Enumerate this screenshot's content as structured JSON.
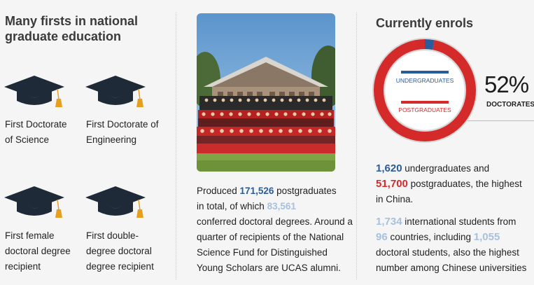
{
  "firsts": {
    "title_line1": "Many firsts in national",
    "title_line2": "graduate education",
    "items": [
      {
        "line1": "First Doctorate",
        "line2": "of Science",
        "icon": "graduation-cap-icon"
      },
      {
        "line1": "First Doctorate of",
        "line2": "Engineering",
        "icon": "graduation-cap-icon"
      },
      {
        "line1": "First female",
        "line2": "doctoral degree",
        "line3": "recipient",
        "icon": "graduation-cap-icon"
      },
      {
        "line1": "First double-",
        "line2": "degree doctoral",
        "line3": "degree recipient",
        "icon": "graduation-cap-icon"
      }
    ],
    "cap_color": "#1e2a38",
    "tassel_color": "#e6a020"
  },
  "produced": {
    "l1_pre": "Produced ",
    "l1_num": "171,526",
    "l1_post": " postgraduates",
    "l2_pre": "in total, of which ",
    "l2_num": "83,561",
    "l3": "conferred doctoral degrees. Around a",
    "l4": "quarter of recipients of the National",
    "l5": "Science Fund for Distinguished",
    "l6": "Young Scholars are UCAS alumni."
  },
  "enrols": {
    "title": "Currently enrols",
    "undergrad_label": "UNDERGRADUATES",
    "postgrad_label": "POSTGRADUATES",
    "percent": "52%",
    "percent_label": "DOCTORATES",
    "postgrad_share": 0.97,
    "undergrad_share": 0.03,
    "colors": {
      "postgrad": "#d42a2a",
      "undergrad": "#2a5b9a"
    },
    "s1_l1_num": "1,620",
    "s1_l1_post": " undergraduates and",
    "s1_l2_num": "51,700",
    "s1_l2_post": " postgraduates, the highest",
    "s1_l3": "in China.",
    "s2_l1_num": "1,734",
    "s2_l1_post": " international students from",
    "s2_l2_num": "96",
    "s2_l2_mid": " countries, including ",
    "s2_l2_num2": "1,055",
    "s2_l3": "doctoral students, also the highest",
    "s2_l4": "number among Chinese universities"
  }
}
